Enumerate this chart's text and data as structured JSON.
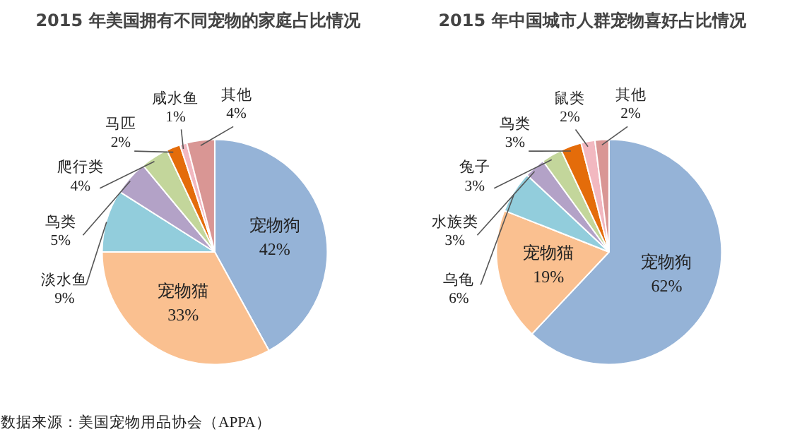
{
  "chart_data": [
    {
      "type": "pie",
      "title": "2015 年美国拥有不同宠物的家庭占比情况",
      "categories": [
        "宠物狗",
        "宠物猫",
        "淡水鱼",
        "鸟类",
        "爬行类",
        "马匹",
        "咸水鱼",
        "其他"
      ],
      "values": [
        42,
        33,
        9,
        5,
        4,
        2,
        1,
        4
      ],
      "value_labels": [
        "42%",
        "33%",
        "9%",
        "5%",
        "4%",
        "2%",
        "1%",
        "4%"
      ],
      "colors": [
        "#95b3d7",
        "#fac090",
        "#92cddc",
        "#b3a2c7",
        "#c3d69b",
        "#e46c0a",
        "#f2b8c0",
        "#d99694"
      ],
      "annotations": [
        "数据来源：美国宠物用品协会（APPA）"
      ]
    },
    {
      "type": "pie",
      "title": "2015 年中国城市人群宠物喜好占比情况",
      "categories": [
        "宠物狗",
        "宠物猫",
        "乌龟",
        "水族类",
        "兔子",
        "鸟类",
        "鼠类",
        "其他"
      ],
      "values": [
        62,
        19,
        6,
        3,
        3,
        3,
        2,
        2
      ],
      "value_labels": [
        "62%",
        "19%",
        "6%",
        "3%",
        "3%",
        "3%",
        "2%",
        "2%"
      ],
      "colors": [
        "#95b3d7",
        "#fac090",
        "#92cddc",
        "#b3a2c7",
        "#c3d69b",
        "#e46c0a",
        "#f2b8c0",
        "#d99694"
      ]
    }
  ]
}
